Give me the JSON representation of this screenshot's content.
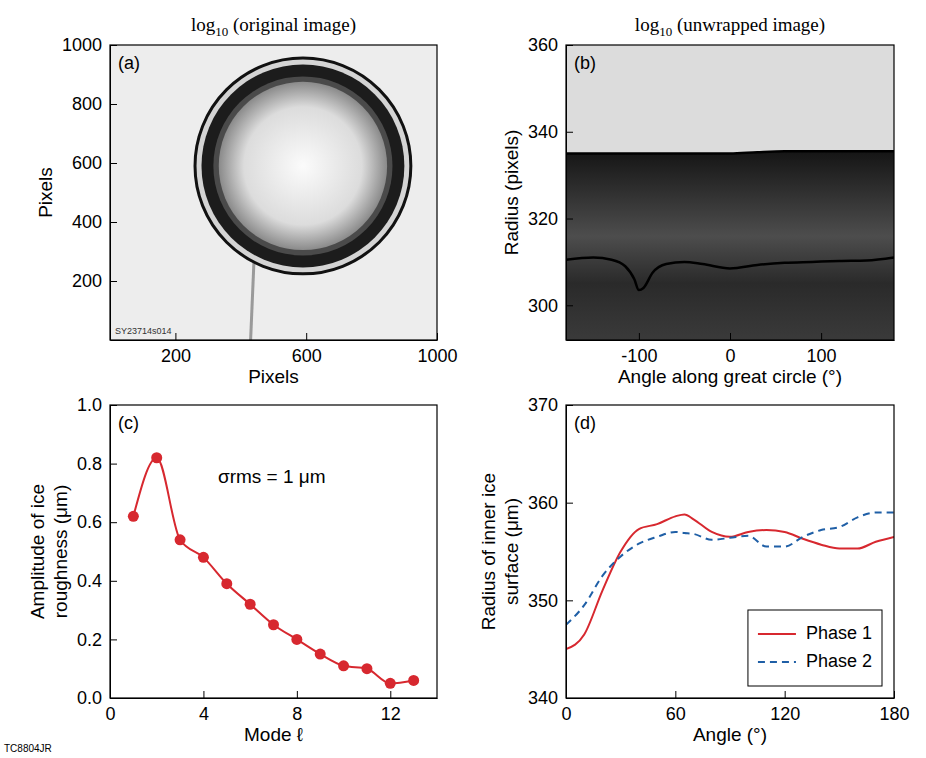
{
  "chart_data": [
    {
      "type": "image",
      "panel": "(a)",
      "title": "log10 (original image)",
      "xlabel": "Pixels",
      "ylabel": "Pixels",
      "annotation": "SY23714s014",
      "xlim": [
        0,
        1000
      ],
      "ylim": [
        0,
        1000
      ],
      "xticks": [
        200,
        600,
        1000
      ],
      "yticks": [
        200,
        400,
        600,
        800,
        1000
      ]
    },
    {
      "type": "image",
      "panel": "(b)",
      "title": "log10 (unwrapped image)",
      "xlabel": "Angle along great circle (°)",
      "ylabel": "Radius (pixels)",
      "xlim": [
        -180,
        180
      ],
      "ylim": [
        292,
        360
      ],
      "xticks": [
        -100,
        0,
        100
      ],
      "yticks": [
        300,
        320,
        340,
        360
      ],
      "x": [
        -180,
        -150,
        -130,
        -115,
        -105,
        -100,
        -95,
        -85,
        -70,
        -50,
        -30,
        0,
        30,
        60,
        90,
        120,
        150,
        180
      ],
      "series": [
        {
          "color": "#000000",
          "values": [
            335,
            335,
            335,
            335,
            335,
            335,
            335,
            335,
            335,
            335,
            335,
            335,
            335.3,
            335.5,
            335.5,
            335.5,
            335.5,
            335.5
          ]
        },
        {
          "color": "#000000",
          "values": [
            310.5,
            311,
            310.5,
            309,
            306,
            303.5,
            304,
            307.5,
            309.5,
            310,
            309.5,
            308.5,
            309.3,
            309.8,
            310,
            310.2,
            310.3,
            311
          ]
        }
      ]
    },
    {
      "type": "line",
      "panel": "(c)",
      "xlabel": "Mode ℓ",
      "ylabel": "Amplitude of ice roughness (μm)",
      "marker": "circle",
      "annotation": "σrms = 1 μm",
      "xlim": [
        0,
        14
      ],
      "ylim": [
        0,
        1
      ],
      "xticks": [
        0,
        4,
        8,
        12
      ],
      "yticks": [
        {
          "value": 0,
          "label": "0.0"
        },
        0.2,
        0.4,
        0.6,
        0.8,
        {
          "value": 1,
          "label": "1.0"
        }
      ],
      "x": [
        1,
        2,
        3,
        4,
        5,
        6,
        7,
        8,
        9,
        10,
        11,
        12,
        13
      ],
      "series": [
        {
          "color": "#d7282f",
          "values": [
            0.62,
            0.82,
            0.54,
            0.48,
            0.39,
            0.32,
            0.25,
            0.2,
            0.15,
            0.11,
            0.1,
            0.05,
            0.06
          ]
        }
      ]
    },
    {
      "type": "line",
      "panel": "(d)",
      "xlabel": "Angle (°)",
      "ylabel": "Radius of inner ice surface (μm)",
      "legend": "lower right",
      "xlim": [
        0,
        180
      ],
      "ylim": [
        340,
        370
      ],
      "xticks": [
        0,
        60,
        120,
        180
      ],
      "yticks": [
        340,
        350,
        360,
        370
      ],
      "x": [
        0,
        10,
        20,
        30,
        40,
        50,
        60,
        65,
        70,
        80,
        90,
        100,
        110,
        120,
        130,
        140,
        150,
        160,
        170,
        180
      ],
      "series": [
        {
          "name": "Phase 1",
          "color": "#d7282f",
          "line_style": "solid",
          "values": [
            345,
            346.5,
            351,
            355,
            357.3,
            357.8,
            358.6,
            358.8,
            358.3,
            357,
            356.5,
            357,
            357.2,
            357,
            356.3,
            355.7,
            355.3,
            355.3,
            356,
            356.5
          ]
        },
        {
          "name": "Phase 2",
          "color": "#1f5fa6",
          "line_style": "dashed",
          "values": [
            347.5,
            349.5,
            352.5,
            354.5,
            355.8,
            356.5,
            357,
            356.9,
            356.8,
            356.2,
            356.4,
            356.6,
            355.5,
            355.5,
            356.5,
            357.2,
            357.5,
            358.5,
            359,
            359
          ]
        }
      ]
    }
  ],
  "figure_id": "TC8804JR"
}
